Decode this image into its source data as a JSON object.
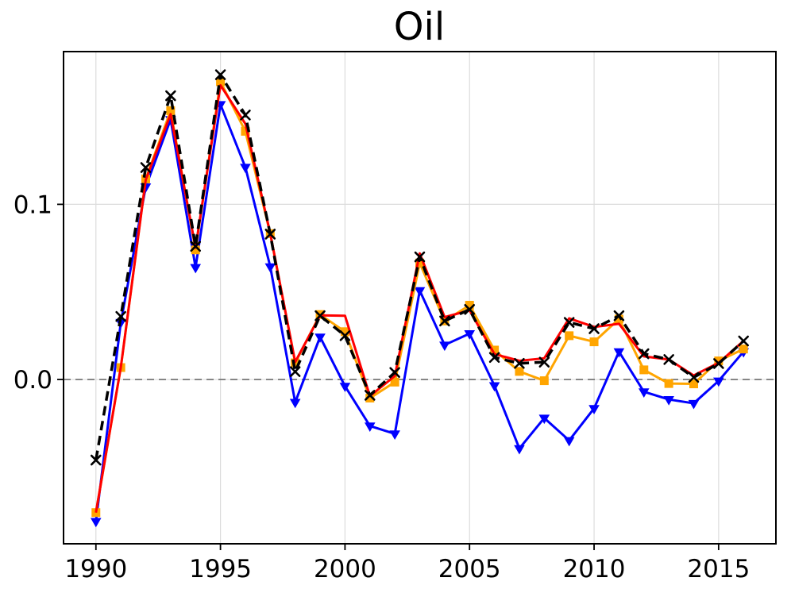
{
  "page": {
    "background_color": "#ffffff"
  },
  "chart_data": {
    "type": "line",
    "title": "Oil",
    "xlabel": "",
    "ylabel": "",
    "x": [
      1990,
      1991,
      1992,
      1993,
      1994,
      1995,
      1996,
      1997,
      1998,
      1999,
      2000,
      2001,
      2002,
      2003,
      2004,
      2005,
      2006,
      2007,
      2008,
      2009,
      2010,
      2011,
      2012,
      2013,
      2014,
      2015,
      2016
    ],
    "xlim": [
      1988.7,
      2017.3
    ],
    "ylim": [
      -0.0938,
      0.1872
    ],
    "xticks": [
      1990,
      1995,
      2000,
      2005,
      2010,
      2015
    ],
    "xtick_labels": [
      "1990",
      "1995",
      "2000",
      "2005",
      "2010",
      "2015"
    ],
    "yticks": [
      0.0,
      0.1
    ],
    "ytick_labels": [
      "0.0",
      "0.1"
    ],
    "grid": true,
    "grid_color": "#dcdcdc",
    "legend": "none",
    "zero_line": {
      "y": 0.0,
      "color": "#7f7f7f",
      "style": "dashed",
      "width": 1.8
    },
    "series": [
      {
        "name": "blue-triangle-series",
        "color": "#0000ff",
        "line_style": "solid",
        "line_width": 3,
        "marker": "triangle-down",
        "values": [
          -0.081,
          0.0326,
          0.11,
          0.1485,
          0.064,
          0.157,
          0.1212,
          0.0644,
          -0.013,
          0.0243,
          -0.0038,
          -0.0265,
          -0.031,
          0.0508,
          0.0197,
          0.0262,
          -0.0035,
          -0.0394,
          -0.022,
          -0.0348,
          -0.0165,
          0.0159,
          -0.007,
          -0.0114,
          -0.0136,
          -0.0008,
          0.0159
        ]
      },
      {
        "name": "orange-square-series",
        "color": "#ffa500",
        "line_style": "solid",
        "line_width": 3,
        "marker": "square",
        "values": [
          -0.076,
          0.0068,
          0.1145,
          0.1535,
          0.074,
          0.17,
          0.1417,
          0.0833,
          0.0095,
          0.0371,
          0.0273,
          -0.0106,
          -0.0015,
          0.0665,
          0.0334,
          0.0424,
          0.0168,
          0.0046,
          -0.0007,
          0.025,
          0.0215,
          0.0345,
          0.0055,
          -0.0023,
          -0.0025,
          0.0106,
          0.0174
        ]
      },
      {
        "name": "red-series",
        "color": "#ff0000",
        "line_style": "solid",
        "line_width": 3,
        "marker": "none",
        "values": [
          -0.076,
          0.007,
          0.114,
          0.1515,
          0.0752,
          0.168,
          0.146,
          0.0833,
          0.01,
          0.0366,
          0.0364,
          -0.0095,
          0.002,
          0.072,
          0.0356,
          0.0395,
          0.0145,
          0.0107,
          0.0121,
          0.0349,
          0.03,
          0.0318,
          0.0132,
          0.0114,
          0.0023,
          0.0095,
          0.022
        ]
      },
      {
        "name": "black-dashed-series",
        "color": "#000000",
        "line_style": "dashed",
        "line_width": 3.5,
        "marker": "x",
        "values": [
          -0.046,
          0.036,
          0.121,
          0.162,
          0.076,
          0.174,
          0.151,
          0.083,
          0.0045,
          0.0364,
          0.025,
          -0.009,
          0.004,
          0.07,
          0.0334,
          0.04,
          0.0126,
          0.0092,
          0.0099,
          0.0326,
          0.029,
          0.0364,
          0.0147,
          0.0114,
          0.0012,
          0.0091,
          0.022
        ]
      }
    ]
  }
}
